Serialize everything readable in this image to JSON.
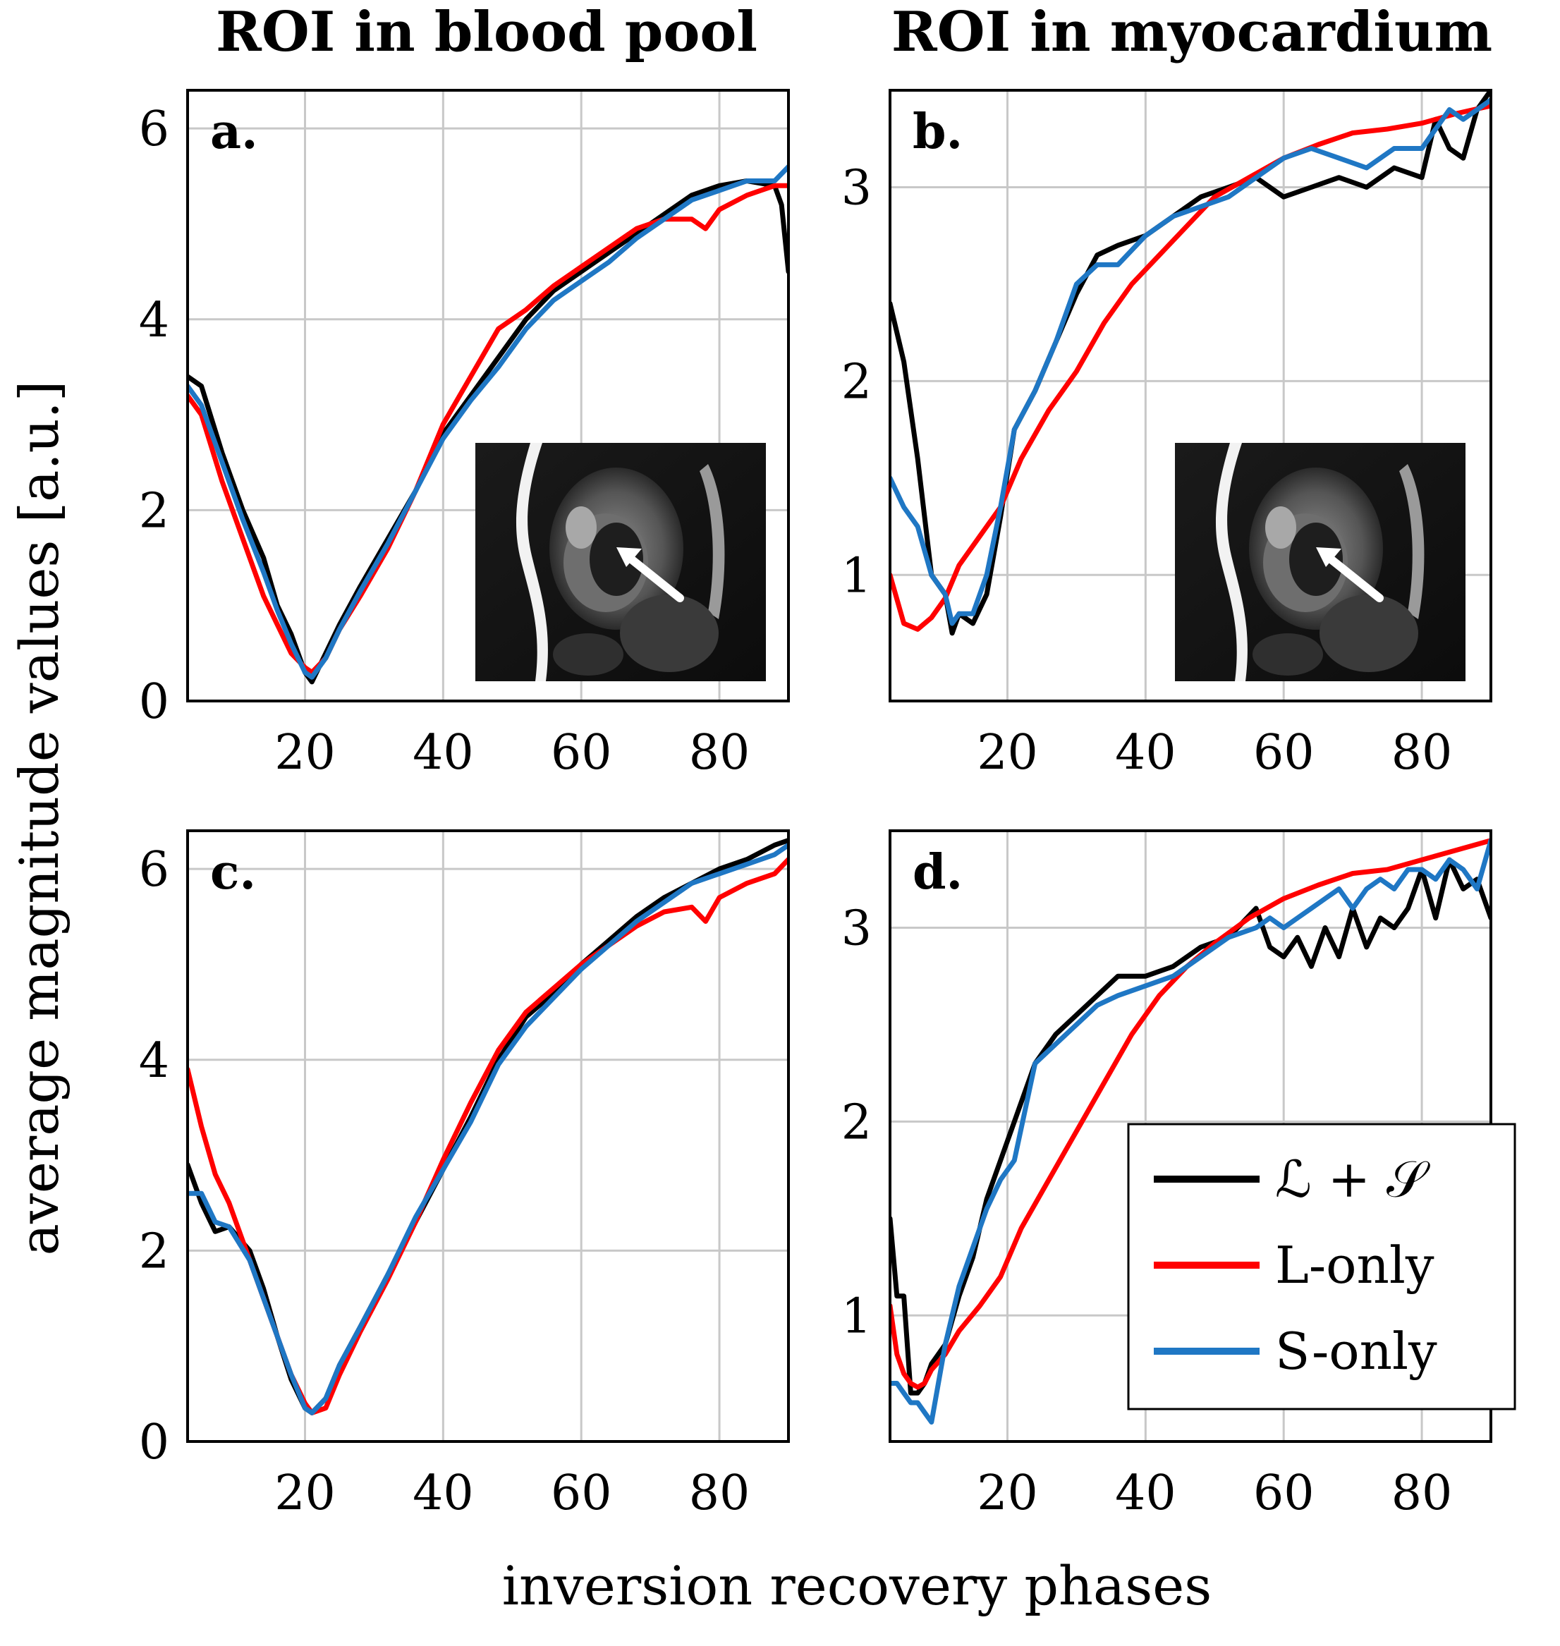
{
  "column_titles": [
    "ROI in blood pool",
    "ROI in myocardium"
  ],
  "axis_labels": {
    "y": "average magnitude values [a.u.]",
    "x": "inversion recovery phases"
  },
  "legend": {
    "entries": [
      {
        "key": "LS",
        "label": "ℒ + 𝒮",
        "color": "#000000"
      },
      {
        "key": "L",
        "label": "L-only",
        "color": "#ff0000"
      },
      {
        "key": "S",
        "label": "S-only",
        "color": "#1f77c4"
      }
    ],
    "placement": "bottom-right of panel d"
  },
  "colors": {
    "LS": "#000000",
    "L": "#ff0000",
    "S": "#1f77c4"
  },
  "chart_data": [
    {
      "type": "line",
      "panel": "a.",
      "title": "ROI in blood pool",
      "inset": "cardiac MR image with arrow pointing to blood pool ROI",
      "xlim": [
        3,
        90
      ],
      "ylim": [
        0,
        6.4
      ],
      "xticks": [
        20,
        40,
        60,
        80
      ],
      "xtick_labels": [
        "20",
        "40",
        "60",
        "80"
      ],
      "yticks": [
        0,
        2,
        4,
        6
      ],
      "ytick_labels": [
        "0",
        "2",
        "4",
        "6"
      ],
      "grid": true,
      "series": [
        {
          "name": "LS",
          "x": [
            3,
            5,
            8,
            11,
            14,
            16,
            18,
            20,
            21,
            23,
            25,
            28,
            32,
            36,
            40,
            44,
            48,
            52,
            56,
            60,
            64,
            68,
            72,
            76,
            80,
            84,
            88,
            89,
            90
          ],
          "y": [
            3.4,
            3.3,
            2.6,
            2.0,
            1.5,
            1.0,
            0.7,
            0.3,
            0.2,
            0.5,
            0.8,
            1.2,
            1.7,
            2.2,
            2.8,
            3.2,
            3.6,
            4.0,
            4.3,
            4.5,
            4.7,
            4.9,
            5.1,
            5.3,
            5.4,
            5.45,
            5.4,
            5.2,
            4.5
          ]
        },
        {
          "name": "L",
          "x": [
            3,
            5,
            8,
            11,
            14,
            16,
            18,
            20,
            21,
            23,
            25,
            28,
            32,
            36,
            40,
            44,
            48,
            52,
            56,
            60,
            64,
            68,
            72,
            76,
            78,
            80,
            84,
            88,
            90
          ],
          "y": [
            3.2,
            3.0,
            2.3,
            1.7,
            1.1,
            0.8,
            0.5,
            0.35,
            0.3,
            0.45,
            0.75,
            1.1,
            1.6,
            2.2,
            2.9,
            3.4,
            3.9,
            4.1,
            4.35,
            4.55,
            4.75,
            4.95,
            5.05,
            5.05,
            4.95,
            5.15,
            5.3,
            5.4,
            5.4
          ]
        },
        {
          "name": "S",
          "x": [
            3,
            5,
            8,
            11,
            14,
            16,
            18,
            20,
            21,
            23,
            25,
            28,
            32,
            36,
            40,
            44,
            48,
            52,
            56,
            60,
            64,
            68,
            72,
            76,
            80,
            84,
            88,
            90
          ],
          "y": [
            3.3,
            3.1,
            2.5,
            1.9,
            1.35,
            0.95,
            0.6,
            0.3,
            0.25,
            0.45,
            0.75,
            1.15,
            1.65,
            2.2,
            2.75,
            3.15,
            3.5,
            3.9,
            4.2,
            4.4,
            4.6,
            4.85,
            5.05,
            5.25,
            5.35,
            5.45,
            5.45,
            5.6
          ]
        }
      ]
    },
    {
      "type": "line",
      "panel": "b.",
      "title": "ROI in myocardium",
      "inset": "cardiac MR image with arrow pointing to myocardium ROI",
      "xlim": [
        3,
        90
      ],
      "ylim": [
        0.35,
        3.5
      ],
      "xticks": [
        20,
        40,
        60,
        80
      ],
      "xtick_labels": [
        "20",
        "40",
        "60",
        "80"
      ],
      "yticks": [
        1,
        2,
        3
      ],
      "ytick_labels": [
        "1",
        "2",
        "3"
      ],
      "grid": true,
      "series": [
        {
          "name": "LS",
          "x": [
            3,
            5,
            7,
            9,
            11,
            12,
            13,
            15,
            17,
            19,
            21,
            24,
            27,
            30,
            33,
            36,
            40,
            44,
            48,
            52,
            56,
            60,
            64,
            68,
            72,
            76,
            80,
            82,
            84,
            86,
            88,
            90
          ],
          "y": [
            2.4,
            2.1,
            1.6,
            1.0,
            0.9,
            0.7,
            0.8,
            0.75,
            0.9,
            1.3,
            1.75,
            1.95,
            2.2,
            2.45,
            2.65,
            2.7,
            2.75,
            2.85,
            2.95,
            3.0,
            3.05,
            2.95,
            3.0,
            3.05,
            3.0,
            3.1,
            3.05,
            3.35,
            3.2,
            3.15,
            3.4,
            3.5
          ]
        },
        {
          "name": "L",
          "x": [
            3,
            5,
            7,
            9,
            11,
            13,
            16,
            19,
            22,
            26,
            30,
            34,
            38,
            42,
            46,
            50,
            55,
            60,
            65,
            70,
            75,
            80,
            85,
            90
          ],
          "y": [
            1.0,
            0.75,
            0.72,
            0.78,
            0.88,
            1.05,
            1.2,
            1.35,
            1.6,
            1.85,
            2.05,
            2.3,
            2.5,
            2.65,
            2.8,
            2.95,
            3.05,
            3.15,
            3.22,
            3.28,
            3.3,
            3.33,
            3.38,
            3.42
          ]
        },
        {
          "name": "S",
          "x": [
            3,
            5,
            7,
            9,
            11,
            12,
            13,
            15,
            17,
            19,
            21,
            24,
            27,
            30,
            33,
            36,
            40,
            44,
            48,
            52,
            56,
            60,
            64,
            68,
            72,
            76,
            80,
            84,
            86,
            88,
            90
          ],
          "y": [
            1.5,
            1.35,
            1.25,
            1.0,
            0.9,
            0.75,
            0.8,
            0.8,
            1.0,
            1.35,
            1.75,
            1.95,
            2.2,
            2.5,
            2.6,
            2.6,
            2.75,
            2.85,
            2.9,
            2.95,
            3.05,
            3.15,
            3.2,
            3.15,
            3.1,
            3.2,
            3.2,
            3.4,
            3.35,
            3.4,
            3.45
          ]
        }
      ]
    },
    {
      "type": "line",
      "panel": "c.",
      "title": "",
      "xlim": [
        3,
        90
      ],
      "ylim": [
        0,
        6.4
      ],
      "xticks": [
        20,
        40,
        60,
        80
      ],
      "xtick_labels": [
        "20",
        "40",
        "60",
        "80"
      ],
      "yticks": [
        0,
        2,
        4,
        6
      ],
      "ytick_labels": [
        "0",
        "2",
        "4",
        "6"
      ],
      "grid": true,
      "series": [
        {
          "name": "LS",
          "x": [
            3,
            5,
            7,
            9,
            12,
            14,
            16,
            18,
            20,
            21,
            23,
            25,
            28,
            32,
            36,
            40,
            44,
            48,
            52,
            56,
            60,
            64,
            68,
            72,
            76,
            80,
            84,
            88,
            90
          ],
          "y": [
            2.9,
            2.5,
            2.2,
            2.25,
            2.0,
            1.6,
            1.1,
            0.65,
            0.35,
            0.3,
            0.45,
            0.8,
            1.2,
            1.75,
            2.3,
            2.85,
            3.4,
            4.0,
            4.45,
            4.7,
            5.0,
            5.25,
            5.5,
            5.7,
            5.85,
            6.0,
            6.1,
            6.25,
            6.3
          ]
        },
        {
          "name": "L",
          "x": [
            3,
            5,
            7,
            9,
            12,
            14,
            16,
            18,
            20,
            21,
            23,
            25,
            28,
            32,
            36,
            40,
            44,
            48,
            52,
            56,
            60,
            64,
            68,
            72,
            76,
            78,
            80,
            84,
            88,
            90
          ],
          "y": [
            3.9,
            3.3,
            2.8,
            2.5,
            1.9,
            1.5,
            1.1,
            0.7,
            0.4,
            0.3,
            0.35,
            0.7,
            1.15,
            1.7,
            2.3,
            2.95,
            3.55,
            4.1,
            4.5,
            4.75,
            5.0,
            5.2,
            5.4,
            5.55,
            5.6,
            5.45,
            5.7,
            5.85,
            5.95,
            6.1
          ]
        },
        {
          "name": "S",
          "x": [
            3,
            5,
            7,
            9,
            12,
            14,
            16,
            18,
            20,
            21,
            23,
            25,
            28,
            32,
            36,
            40,
            44,
            48,
            52,
            56,
            60,
            64,
            68,
            72,
            76,
            80,
            84,
            88,
            90
          ],
          "y": [
            2.6,
            2.6,
            2.3,
            2.25,
            1.9,
            1.5,
            1.1,
            0.7,
            0.35,
            0.3,
            0.45,
            0.8,
            1.2,
            1.75,
            2.35,
            2.85,
            3.35,
            3.95,
            4.35,
            4.65,
            4.95,
            5.2,
            5.45,
            5.65,
            5.85,
            5.95,
            6.05,
            6.15,
            6.25
          ]
        }
      ]
    },
    {
      "type": "line",
      "panel": "d.",
      "title": "",
      "xlim": [
        3,
        90
      ],
      "ylim": [
        0.35,
        3.5
      ],
      "xticks": [
        20,
        40,
        60,
        80
      ],
      "xtick_labels": [
        "20",
        "40",
        "60",
        "80"
      ],
      "yticks": [
        1,
        2,
        3
      ],
      "ytick_labels": [
        "1",
        "2",
        "3"
      ],
      "grid": true,
      "series": [
        {
          "name": "LS",
          "x": [
            3,
            4,
            5,
            6,
            7,
            8,
            9,
            11,
            13,
            15,
            17,
            19,
            21,
            24,
            27,
            30,
            33,
            36,
            40,
            44,
            48,
            52,
            56,
            58,
            60,
            62,
            64,
            66,
            68,
            70,
            72,
            74,
            76,
            78,
            80,
            82,
            84,
            86,
            88,
            90
          ],
          "y": [
            1.5,
            1.1,
            1.1,
            0.6,
            0.6,
            0.65,
            0.75,
            0.85,
            1.1,
            1.3,
            1.6,
            1.8,
            2.0,
            2.3,
            2.45,
            2.55,
            2.65,
            2.75,
            2.75,
            2.8,
            2.9,
            2.95,
            3.1,
            2.9,
            2.85,
            2.95,
            2.8,
            3.0,
            2.85,
            3.1,
            2.9,
            3.05,
            3.0,
            3.1,
            3.3,
            3.05,
            3.35,
            3.2,
            3.25,
            3.05
          ]
        },
        {
          "name": "L",
          "x": [
            3,
            4,
            5,
            6,
            7,
            8,
            9,
            11,
            13,
            16,
            19,
            22,
            26,
            30,
            34,
            38,
            42,
            46,
            50,
            55,
            60,
            65,
            70,
            75,
            80,
            85,
            90
          ],
          "y": [
            1.05,
            0.8,
            0.7,
            0.65,
            0.63,
            0.65,
            0.72,
            0.8,
            0.92,
            1.05,
            1.2,
            1.45,
            1.7,
            1.95,
            2.2,
            2.45,
            2.65,
            2.8,
            2.92,
            3.05,
            3.15,
            3.22,
            3.28,
            3.3,
            3.35,
            3.4,
            3.45
          ]
        },
        {
          "name": "S",
          "x": [
            3,
            4,
            5,
            6,
            7,
            8,
            9,
            11,
            13,
            15,
            17,
            19,
            21,
            24,
            27,
            30,
            33,
            36,
            40,
            44,
            48,
            52,
            56,
            58,
            60,
            62,
            64,
            66,
            68,
            70,
            72,
            74,
            76,
            78,
            80,
            82,
            84,
            86,
            88,
            90
          ],
          "y": [
            0.65,
            0.65,
            0.6,
            0.55,
            0.55,
            0.5,
            0.45,
            0.85,
            1.15,
            1.35,
            1.55,
            1.7,
            1.8,
            2.3,
            2.4,
            2.5,
            2.6,
            2.65,
            2.7,
            2.75,
            2.85,
            2.95,
            3.0,
            3.05,
            3.0,
            3.05,
            3.1,
            3.15,
            3.2,
            3.1,
            3.2,
            3.25,
            3.2,
            3.3,
            3.3,
            3.25,
            3.35,
            3.3,
            3.2,
            3.45
          ]
        }
      ]
    }
  ]
}
